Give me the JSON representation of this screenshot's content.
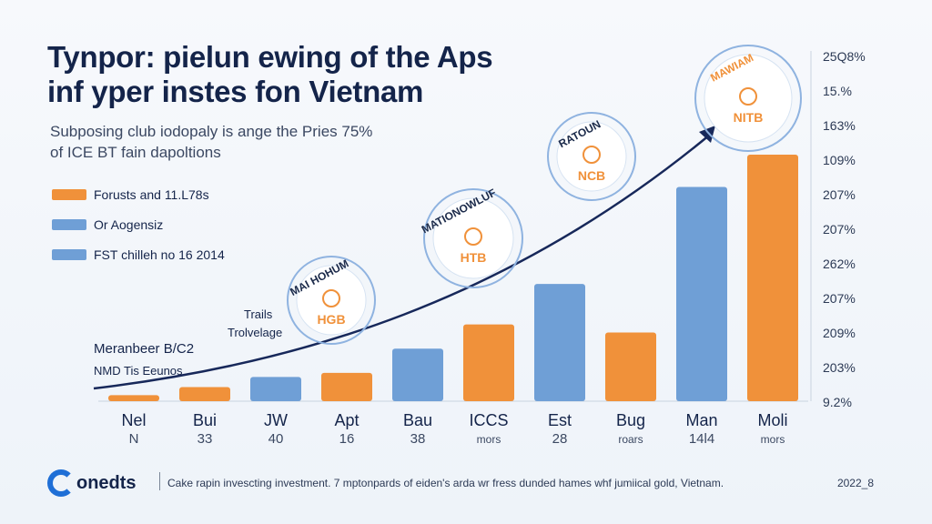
{
  "title_lines": [
    "Tynpor: pielun ewing of the Aps",
    "inf yper instes fon Vietnam"
  ],
  "subtitle_lines": [
    "Subposing club iodopaly is ange the Pries 75%",
    "of ICE BT fain dapoltions"
  ],
  "legend": [
    {
      "label": "Forusts and 11.L78s",
      "color": "#f0913a"
    },
    {
      "label": "Or Aogensiz",
      "color": "#6f9fd6"
    },
    {
      "label": "FST chilleh no 16 2014",
      "color": "#6f9fd6"
    }
  ],
  "chart_data": {
    "type": "bar",
    "categories": [
      {
        "name": "Nel",
        "sub": "N"
      },
      {
        "name": "Bui",
        "sub": "33"
      },
      {
        "name": "JW",
        "sub": "40"
      },
      {
        "name": "Apt",
        "sub": "16"
      },
      {
        "name": "Bau",
        "sub": "38"
      },
      {
        "name": "ICCS",
        "sub": "mors"
      },
      {
        "name": "Est",
        "sub": "28"
      },
      {
        "name": "Bug",
        "sub": "roars"
      },
      {
        "name": "Man",
        "sub": "14l4"
      },
      {
        "name": "Moli",
        "sub": "mors"
      }
    ],
    "series": [
      {
        "name": "Forusts and 11.L78s",
        "color": "#f0913a",
        "values": [
          1.5,
          3.5,
          null,
          7,
          null,
          19,
          null,
          17,
          null,
          61
        ]
      },
      {
        "name": "Or Aogensiz",
        "color": "#6f9fd6",
        "values": [
          null,
          null,
          6,
          null,
          13,
          null,
          29,
          null,
          53,
          null
        ]
      }
    ],
    "ylim": [
      0,
      70
    ],
    "y_tick_labels": [
      "9.2%",
      "203%",
      "209%",
      "207%",
      "262%",
      "207%",
      "207%",
      "109%",
      "163%",
      "15.%",
      "25Q8%"
    ],
    "trend_line": true,
    "annotations": [
      {
        "text": "Trails",
        "sub": "Trolvelage"
      },
      {
        "text": "Meranbeer B/C2",
        "sub": "NMD Tis Eeunos"
      }
    ],
    "badges": [
      {
        "ring": "MAI HOHUM",
        "label": "HGB"
      },
      {
        "ring": "MATIONOWLUF",
        "label": "HTB"
      },
      {
        "ring": "RATOUN",
        "label": "NCB"
      },
      {
        "ring": "MAWIAM",
        "label": "NITB"
      }
    ]
  },
  "footer": {
    "logo_text": "onedts",
    "note": "Cake rapin invescting investment. 7 mptonpards of eiden's arda wr fress dunded hames whf jumiical gold, Vietnam.",
    "year": "2022_8"
  }
}
